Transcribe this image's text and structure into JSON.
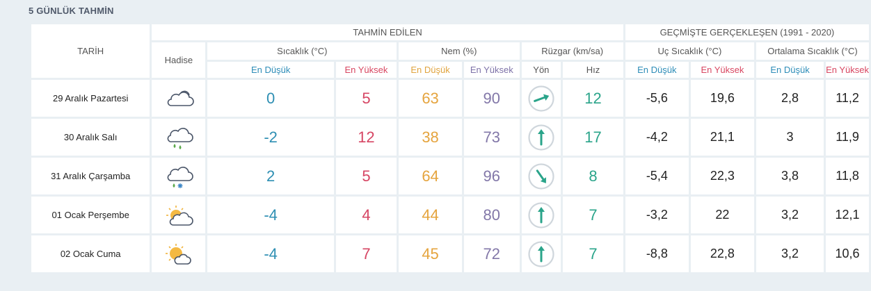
{
  "title": "5 GÜNLÜK TAHMİN",
  "headers": {
    "tarih": "TARİH",
    "hadise": "Hadise",
    "tahmin": "TAHMİN EDİLEN",
    "gecmis": "GEÇMİŞTE GERÇEKLEŞEN (1991 - 2020)",
    "sicaklik": "Sıcaklık (°C)",
    "nem": "Nem (%)",
    "ruzgar": "Rüzgar (km/sa)",
    "uc": "Uç Sıcaklık (°C)",
    "ortalama": "Ortalama Sıcaklık (°C)",
    "en_dusuk": "En Düşük",
    "en_yuksek": "En Yüksek",
    "yon": "Yön",
    "hiz": "Hız"
  },
  "days": [
    {
      "date": "29 Aralık Pazartesi",
      "icon": "cloudy-icon",
      "temp_low": "0",
      "temp_high": "5",
      "hum_low": "63",
      "hum_high": "90",
      "wind_dir_deg": 70,
      "wind_speed": "12",
      "ext_low": "-5,6",
      "ext_high": "19,6",
      "avg_low": "2,8",
      "avg_high": "11,2"
    },
    {
      "date": "30 Aralık Salı",
      "icon": "cloud-rain-icon",
      "temp_low": "-2",
      "temp_high": "12",
      "hum_low": "38",
      "hum_high": "73",
      "wind_dir_deg": 0,
      "wind_speed": "17",
      "ext_low": "-4,2",
      "ext_high": "21,1",
      "avg_low": "3",
      "avg_high": "11,9"
    },
    {
      "date": "31 Aralık Çarşamba",
      "icon": "cloud-rain-snow-icon",
      "temp_low": "2",
      "temp_high": "5",
      "hum_low": "64",
      "hum_high": "96",
      "wind_dir_deg": 145,
      "wind_speed": "8",
      "ext_low": "-5,4",
      "ext_high": "22,3",
      "avg_low": "3,8",
      "avg_high": "11,8"
    },
    {
      "date": "01 Ocak Perşembe",
      "icon": "partly-cloudy-icon",
      "temp_low": "-4",
      "temp_high": "4",
      "hum_low": "44",
      "hum_high": "80",
      "wind_dir_deg": 0,
      "wind_speed": "7",
      "ext_low": "-3,2",
      "ext_high": "22",
      "avg_low": "3,2",
      "avg_high": "12,1"
    },
    {
      "date": "02 Ocak Cuma",
      "icon": "sun-cloud-icon",
      "temp_low": "-4",
      "temp_high": "7",
      "hum_low": "45",
      "hum_high": "72",
      "wind_dir_deg": 0,
      "wind_speed": "7",
      "ext_low": "-8,8",
      "ext_high": "22,8",
      "avg_low": "3,2",
      "avg_high": "10,6"
    }
  ]
}
